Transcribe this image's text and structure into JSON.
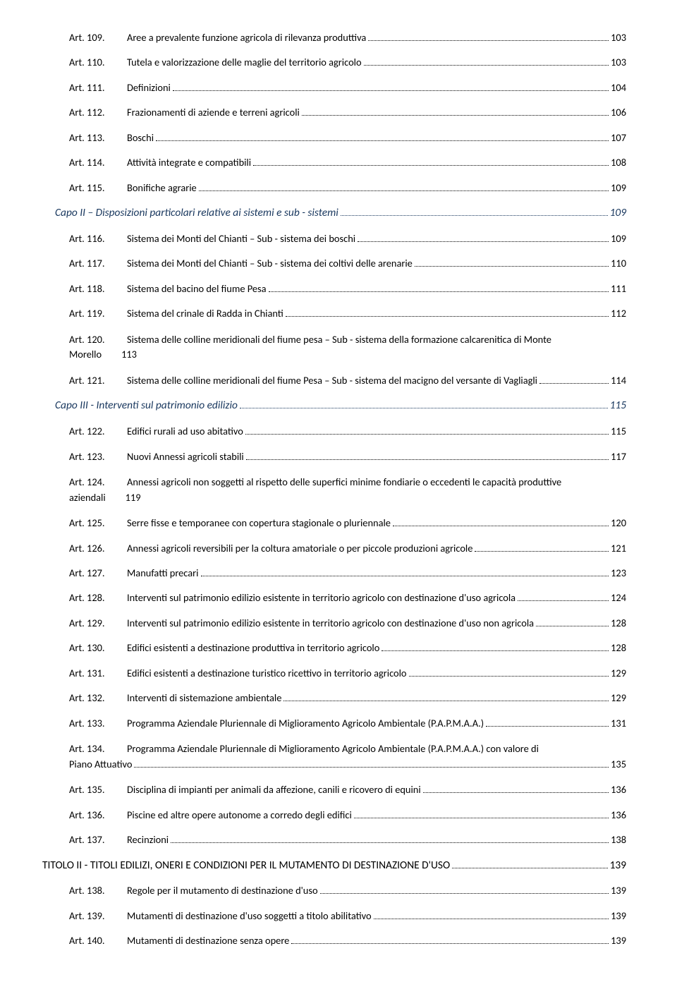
{
  "colors": {
    "background": "#ffffff",
    "text": "#000000",
    "capo": "#17365d",
    "leader": "#000000"
  },
  "typography": {
    "base_font": "Calibri",
    "base_size_pt": 11,
    "capo_size_pt": 12,
    "titolo_size_pt": 12
  },
  "entries": [
    {
      "id": "a109",
      "kind": "art",
      "label": "Art. 109.",
      "text": "Aree a prevalente funzione agricola di rilevanza produttiva",
      "page": "103"
    },
    {
      "id": "a110",
      "kind": "art",
      "label": "Art. 110.",
      "text": "Tutela e valorizzazione delle maglie del territorio agricolo",
      "page": "103"
    },
    {
      "id": "a111",
      "kind": "art",
      "label": "Art. 111.",
      "text": "Definizioni",
      "page": "104"
    },
    {
      "id": "a112",
      "kind": "art",
      "label": "Art. 112.",
      "text": "Frazionamenti di aziende e terreni agricoli",
      "page": "106"
    },
    {
      "id": "a113",
      "kind": "art",
      "label": "Art. 113.",
      "text": "Boschi",
      "page": "107"
    },
    {
      "id": "a114",
      "kind": "art",
      "label": "Art. 114.",
      "text": "Attività integrate e compatibili",
      "page": "108"
    },
    {
      "id": "a115",
      "kind": "art",
      "label": "Art. 115.",
      "text": "Bonifiche agrarie",
      "page": "109"
    },
    {
      "id": "capo2",
      "kind": "capo",
      "text": "Capo II – Disposizioni particolari relative ai sistemi e sub - sistemi",
      "page": "109"
    },
    {
      "id": "a116",
      "kind": "art",
      "label": "Art. 116.",
      "text": "Sistema dei Monti del Chianti – Sub - sistema dei boschi",
      "page": "109"
    },
    {
      "id": "a117",
      "kind": "art",
      "label": "Art. 117.",
      "text": "Sistema dei Monti del Chianti – Sub - sistema dei coltivi delle arenarie",
      "page": "110"
    },
    {
      "id": "a118",
      "kind": "art",
      "label": "Art. 118.",
      "text": "Sistema del bacino del fiume Pesa",
      "page": "111"
    },
    {
      "id": "a119",
      "kind": "art",
      "label": "Art. 119.",
      "text": "Sistema del crinale di Radda in Chianti",
      "page": "112"
    },
    {
      "id": "a120",
      "kind": "art-2line",
      "label": "Art. 120.",
      "text": "Sistema delle colline meridionali del fiume pesa – Sub - sistema della formazione calcarenitica di Monte",
      "cont": "Morello",
      "tail": "113"
    },
    {
      "id": "a121",
      "kind": "art",
      "label": "Art. 121.",
      "text": "Sistema delle colline meridionali del fiume Pesa – Sub - sistema del macigno del versante di Vagliagli",
      "page": "114"
    },
    {
      "id": "capo3",
      "kind": "capo",
      "text": "Capo III - Interventi sul patrimonio edilizio",
      "page": "115"
    },
    {
      "id": "a122",
      "kind": "art",
      "label": "Art. 122.",
      "text": "Edifici rurali ad uso abitativo",
      "page": "115"
    },
    {
      "id": "a123",
      "kind": "art",
      "label": "Art. 123.",
      "text": "Nuovi Annessi agricoli stabili",
      "page": "117"
    },
    {
      "id": "a124",
      "kind": "art-2line",
      "label": "Art. 124.",
      "text": "Annessi agricoli non soggetti al rispetto delle superfici minime fondiarie o eccedenti le capacità produttive",
      "cont": "aziendali",
      "tail": "119"
    },
    {
      "id": "a125",
      "kind": "art",
      "label": "Art. 125.",
      "text": "Serre fisse e temporanee con copertura stagionale o pluriennale",
      "page": "120"
    },
    {
      "id": "a126",
      "kind": "art",
      "label": "Art. 126.",
      "text": "Annessi agricoli reversibili per la coltura amatoriale o per piccole produzioni agricole",
      "page": "121"
    },
    {
      "id": "a127",
      "kind": "art",
      "label": "Art. 127.",
      "text": "Manufatti precari",
      "page": "123"
    },
    {
      "id": "a128",
      "kind": "art",
      "label": "Art. 128.",
      "text": "Interventi sul patrimonio edilizio esistente in territorio agricolo con destinazione d'uso agricola",
      "page": "124"
    },
    {
      "id": "a129",
      "kind": "art",
      "label": "Art. 129.",
      "text": "Interventi sul patrimonio edilizio esistente in territorio agricolo con destinazione d'uso non agricola",
      "page": "128"
    },
    {
      "id": "a130",
      "kind": "art",
      "label": "Art. 130.",
      "text": "Edifici esistenti a destinazione produttiva in territorio agricolo",
      "page": "128"
    },
    {
      "id": "a131",
      "kind": "art",
      "label": "Art. 131.",
      "text": "Edifici esistenti a destinazione turistico ricettivo in territorio agricolo",
      "page": "129"
    },
    {
      "id": "a132",
      "kind": "art",
      "label": "Art. 132.",
      "text": "Interventi di sistemazione ambientale",
      "page": "129"
    },
    {
      "id": "a133",
      "kind": "art",
      "label": "Art. 133.",
      "text": "Programma Aziendale Pluriennale di Miglioramento Agricolo Ambientale (P.A.P.M.A.A.)",
      "page": "131"
    },
    {
      "id": "a134",
      "kind": "art-wrap",
      "label": "Art. 134.",
      "text": "Programma Aziendale Pluriennale di Miglioramento Agricolo Ambientale (P.A.P.M.A.A.) con valore di",
      "cont": "Piano Attuativo",
      "page": "135"
    },
    {
      "id": "a135",
      "kind": "art",
      "label": "Art. 135.",
      "text": "Disciplina di impianti per animali da affezione, canili e ricovero di equini",
      "page": "136"
    },
    {
      "id": "a136",
      "kind": "art",
      "label": "Art. 136.",
      "text": "Piscine ed altre opere autonome a corredo degli edifici",
      "page": "136"
    },
    {
      "id": "a137",
      "kind": "art",
      "label": "Art. 137.",
      "text": "Recinzioni",
      "page": "138"
    },
    {
      "id": "tit2",
      "kind": "titolo",
      "text": "TITOLO II - TITOLI EDILIZI, ONERI E CONDIZIONI PER IL MUTAMENTO DI DESTINAZIONE D'USO",
      "page": "139"
    },
    {
      "id": "a138",
      "kind": "art",
      "label": "Art. 138.",
      "text": "Regole per il mutamento di destinazione d'uso",
      "page": "139"
    },
    {
      "id": "a139",
      "kind": "art",
      "label": "Art. 139.",
      "text": "Mutamenti di destinazione d'uso soggetti a titolo abilitativo",
      "page": "139"
    },
    {
      "id": "a140",
      "kind": "art",
      "label": "Art. 140.",
      "text": "Mutamenti di destinazione senza opere",
      "page": "139"
    }
  ]
}
